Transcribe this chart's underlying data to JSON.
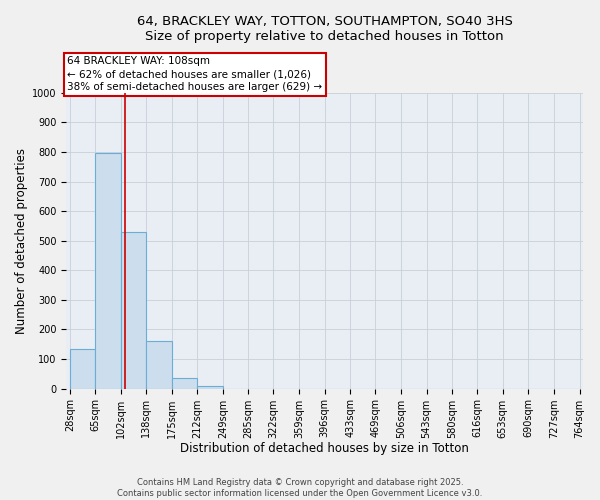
{
  "title_line1": "64, BRACKLEY WAY, TOTTON, SOUTHAMPTON, SO40 3HS",
  "title_line2": "Size of property relative to detached houses in Totton",
  "bar_edges": [
    28,
    65,
    102,
    138,
    175,
    212,
    249,
    285,
    322,
    359,
    396,
    433,
    469,
    506,
    543,
    580,
    616,
    653,
    690,
    727,
    764
  ],
  "bar_heights": [
    135,
    795,
    530,
    160,
    35,
    10,
    0,
    0,
    0,
    0,
    0,
    0,
    0,
    0,
    0,
    0,
    0,
    0,
    0,
    0
  ],
  "bar_color": "#ccdded",
  "bar_edge_color": "#6aaed6",
  "property_size": 108,
  "red_line_color": "#cc0000",
  "annotation_line1": "64 BRACKLEY WAY: 108sqm",
  "annotation_line2": "← 62% of detached houses are smaller (1,026)",
  "annotation_line3": "38% of semi-detached houses are larger (629) →",
  "annotation_box_color": "#ffffff",
  "annotation_box_edge": "#cc0000",
  "xlabel": "Distribution of detached houses by size in Totton",
  "ylabel": "Number of detached properties",
  "ylim": [
    0,
    1000
  ],
  "yticks": [
    0,
    100,
    200,
    300,
    400,
    500,
    600,
    700,
    800,
    900,
    1000
  ],
  "grid_color": "#c8d0d8",
  "bg_color": "#e8eef4",
  "fig_bg_color": "#f0f0f0",
  "footer_line1": "Contains HM Land Registry data © Crown copyright and database right 2025.",
  "footer_line2": "Contains public sector information licensed under the Open Government Licence v3.0.",
  "title_fontsize": 9.5,
  "axis_label_fontsize": 8.5,
  "tick_fontsize": 7,
  "annotation_fontsize": 7.5,
  "footer_fontsize": 6
}
